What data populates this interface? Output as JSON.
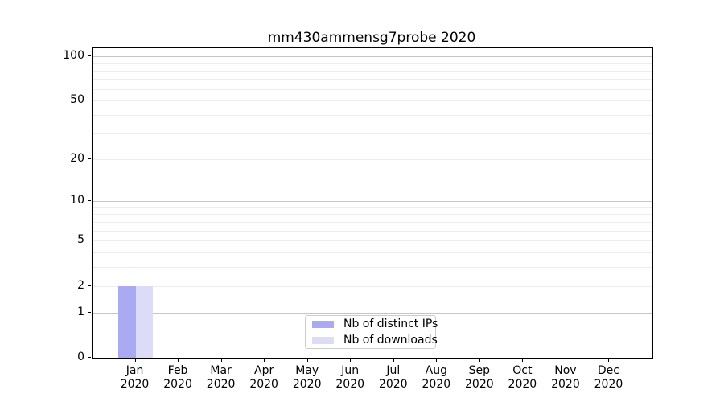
{
  "title": "mm430ammensg7probe 2020",
  "chart_data": {
    "type": "bar",
    "title": "mm430ammensg7probe 2020",
    "x_tick_months": [
      "Jan",
      "Feb",
      "Mar",
      "Apr",
      "May",
      "Jun",
      "Jul",
      "Aug",
      "Sep",
      "Oct",
      "Nov",
      "Dec"
    ],
    "x_tick_year": "2020",
    "series": [
      {
        "name": "Nb of distinct IPs",
        "color": "#aaaaf2",
        "values": [
          2,
          0,
          0,
          0,
          0,
          0,
          0,
          0,
          0,
          0,
          0,
          0
        ]
      },
      {
        "name": "Nb of downloads",
        "color": "#dcdcf9",
        "values": [
          2,
          0,
          0,
          0,
          0,
          0,
          0,
          0,
          0,
          0,
          0,
          0
        ]
      }
    ],
    "y_scale": "log1p",
    "ylim": [
      0,
      113
    ],
    "y_tick_values": [
      0,
      1,
      2,
      5,
      10,
      20,
      50,
      100
    ],
    "y_major_gridlines": [
      1,
      10,
      100
    ],
    "y_minor_gridlines": [
      2,
      3,
      4,
      5,
      6,
      7,
      8,
      9,
      20,
      30,
      40,
      50,
      60,
      70,
      80,
      90
    ],
    "legend_position": "lower center",
    "grid": true,
    "colors": {
      "major_grid": "#c6c6c6",
      "minor_grid": "#ededed",
      "axis": "#000000",
      "legend_border": "#cccccc",
      "background": "#ffffff"
    }
  }
}
